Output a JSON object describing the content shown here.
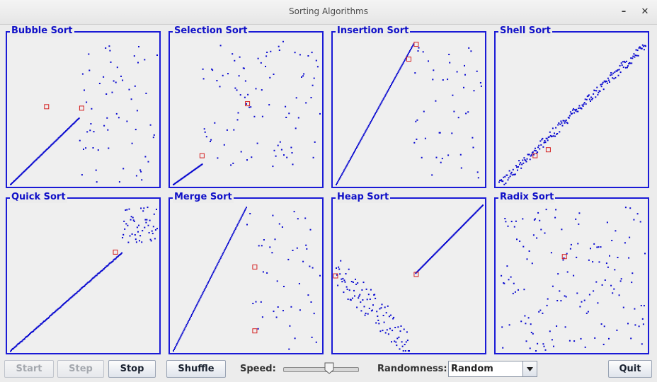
{
  "window": {
    "title": "Sorting Algorithms"
  },
  "panels": [
    {
      "title": "Bubble Sort"
    },
    {
      "title": "Selection Sort"
    },
    {
      "title": "Insertion Sort"
    },
    {
      "title": "Shell Sort"
    },
    {
      "title": "Quick Sort"
    },
    {
      "title": "Merge Sort"
    },
    {
      "title": "Heap Sort"
    },
    {
      "title": "Radix Sort"
    }
  ],
  "controls": {
    "start_label": "Start",
    "step_label": "Step",
    "stop_label": "Stop",
    "shuffle_label": "Shuffle",
    "speed_label": "Speed:",
    "speed_value": 0.64,
    "randomness_label": "Randomness:",
    "randomness_value": "Random",
    "quit_label": "Quit"
  },
  "colors": {
    "dot": "#0a0ad0",
    "highlight": "#d42020",
    "border": "#1a1ad6"
  },
  "icons": {
    "minimize": "minimize-icon",
    "close": "close-icon",
    "dropdown": "chevron-down-icon"
  }
}
